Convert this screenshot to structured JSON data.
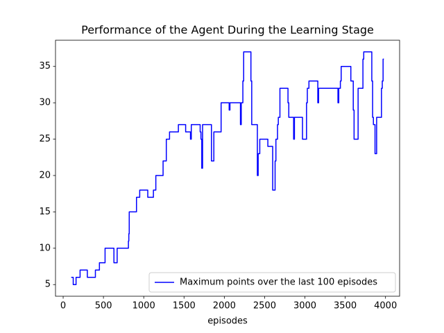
{
  "chart_data": {
    "type": "line",
    "title": "Performance of the Agent During the Learning Stage",
    "x_label": "episodes",
    "legend": "lower right",
    "grid": false,
    "xlim": [
      -95,
      4175
    ],
    "ylim": [
      3.4,
      38.6
    ],
    "xticks": [
      0,
      500,
      1000,
      1500,
      2000,
      2500,
      3000,
      3500,
      4000
    ],
    "yticks": [
      5,
      10,
      15,
      20,
      25,
      30,
      35
    ],
    "series": [
      {
        "name": "Maximum points over the last 100 episodes",
        "color": "#0000ff",
        "x": [
          100,
          125,
          125,
          160,
          160,
          210,
          210,
          300,
          300,
          400,
          400,
          450,
          450,
          520,
          520,
          630,
          630,
          670,
          670,
          810,
          810,
          815,
          815,
          820,
          820,
          910,
          910,
          950,
          950,
          1050,
          1050,
          1120,
          1120,
          1150,
          1150,
          1240,
          1240,
          1280,
          1280,
          1320,
          1320,
          1430,
          1430,
          1520,
          1520,
          1580,
          1580,
          1590,
          1590,
          1700,
          1700,
          1710,
          1710,
          1720,
          1720,
          1730,
          1730,
          1840,
          1840,
          1870,
          1870,
          1960,
          1960,
          2060,
          2060,
          2070,
          2070,
          2200,
          2200,
          2210,
          2210,
          2230,
          2230,
          2240,
          2240,
          2330,
          2330,
          2340,
          2340,
          2410,
          2410,
          2420,
          2420,
          2440,
          2440,
          2540,
          2540,
          2600,
          2600,
          2630,
          2630,
          2640,
          2640,
          2660,
          2660,
          2670,
          2670,
          2690,
          2690,
          2790,
          2790,
          2800,
          2800,
          2860,
          2860,
          2870,
          2870,
          2970,
          2970,
          3020,
          3020,
          3030,
          3030,
          3050,
          3050,
          3160,
          3160,
          3170,
          3170,
          3410,
          3410,
          3420,
          3420,
          3440,
          3440,
          3450,
          3450,
          3570,
          3570,
          3600,
          3600,
          3610,
          3610,
          3660,
          3660,
          3720,
          3720,
          3730,
          3730,
          3830,
          3830,
          3840,
          3840,
          3850,
          3850,
          3870,
          3870,
          3890,
          3890,
          3950,
          3950,
          3960,
          3960,
          3970,
          3970,
          3980
        ],
        "values": [
          6,
          6,
          5,
          5,
          6,
          6,
          7,
          7,
          6,
          6,
          7,
          7,
          8,
          8,
          10,
          10,
          8,
          8,
          10,
          10,
          11,
          11,
          12,
          12,
          15,
          15,
          17,
          17,
          18,
          18,
          17,
          17,
          18,
          18,
          20,
          20,
          22,
          22,
          25,
          25,
          26,
          26,
          27,
          27,
          26,
          26,
          25,
          25,
          27,
          27,
          26,
          26,
          25,
          25,
          21,
          21,
          27,
          27,
          22,
          22,
          26,
          26,
          30,
          30,
          29,
          29,
          30,
          30,
          27,
          27,
          30,
          30,
          33,
          33,
          37,
          37,
          33,
          33,
          27,
          27,
          20,
          20,
          23,
          23,
          25,
          25,
          24,
          24,
          18,
          18,
          22,
          22,
          25,
          25,
          27,
          27,
          28,
          28,
          32,
          32,
          30,
          30,
          28,
          28,
          25,
          25,
          28,
          28,
          25,
          25,
          30,
          30,
          32,
          32,
          33,
          33,
          30,
          30,
          32,
          32,
          30,
          30,
          32,
          32,
          33,
          33,
          35,
          35,
          33,
          33,
          29,
          29,
          25,
          25,
          32,
          32,
          36,
          36,
          37,
          37,
          33,
          33,
          28,
          28,
          27,
          27,
          23,
          23,
          28,
          28,
          32,
          32,
          33,
          33,
          36,
          36
        ]
      }
    ]
  }
}
